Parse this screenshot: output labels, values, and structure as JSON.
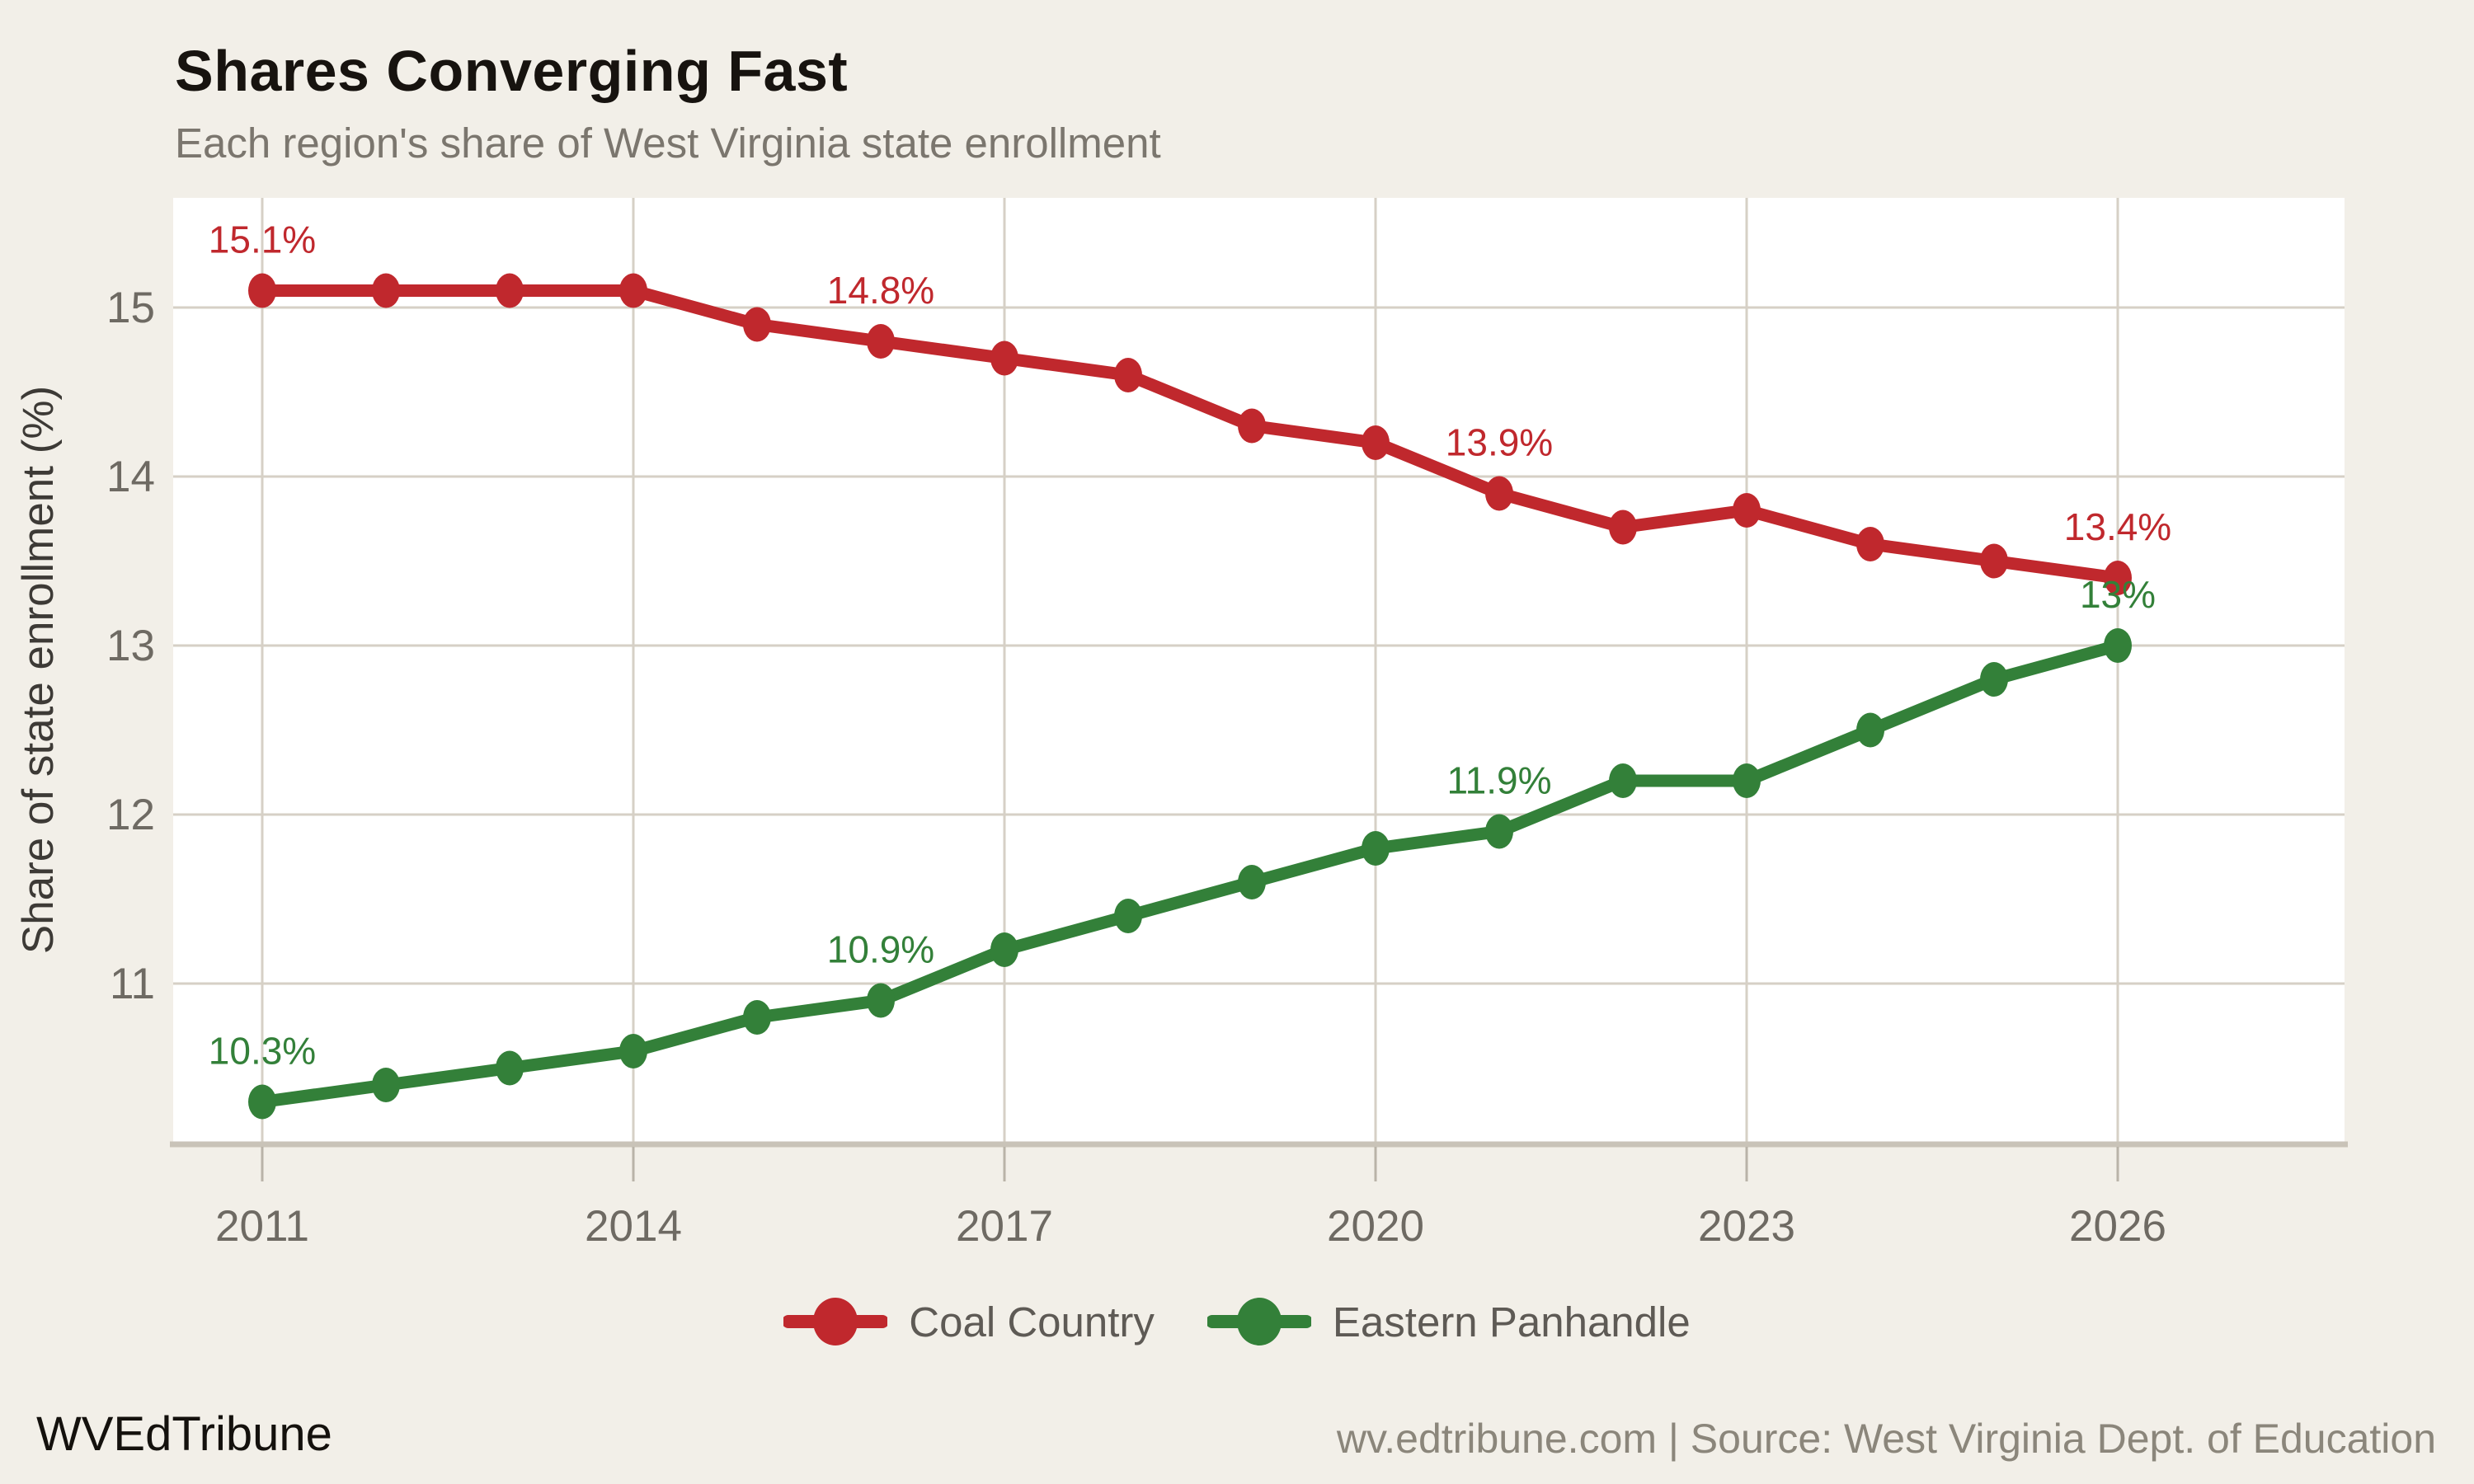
{
  "title": "Shares Converging Fast",
  "subtitle": "Each region's share of West Virginia state enrollment",
  "footer": {
    "brand": "WVEdTribune",
    "attribution": "wv.edtribune.com | Source: West Virginia Dept. of Education"
  },
  "colors": {
    "background": "#f2efe8",
    "plot_background": "#ffffff",
    "gridline": "#d6d0c6",
    "axis_line": "#c9c3b8",
    "tick_mark": "#b9b3a8",
    "tick_text": "#6e6a63",
    "axis_title_text": "#3d3a36",
    "legend_text": "#5e5a55",
    "coal_country_red": "#c0282d",
    "eastern_panhandle_green": "#338039"
  },
  "chart_data": {
    "type": "line",
    "title": "Shares Converging Fast",
    "subtitle": "Each region's share of West Virginia state enrollment",
    "xlabel": "",
    "ylabel": "Share of state enrollment (%)",
    "x": [
      2011,
      2012,
      2013,
      2014,
      2015,
      2016,
      2017,
      2018,
      2019,
      2020,
      2021,
      2022,
      2023,
      2024,
      2025,
      2026
    ],
    "xticks": [
      2011,
      2014,
      2017,
      2020,
      2023,
      2026
    ],
    "yticks": [
      11,
      12,
      13,
      14,
      15
    ],
    "ylim": [
      10.06,
      15.65
    ],
    "xlim": [
      2010.3,
      2027.8
    ],
    "grid": true,
    "legend_position": "bottom-center",
    "series": [
      {
        "name": "Coal Country",
        "color": "#c0282d",
        "values": [
          15.1,
          15.1,
          15.1,
          15.1,
          14.9,
          14.8,
          14.7,
          14.6,
          14.3,
          14.2,
          13.9,
          13.7,
          13.8,
          13.6,
          13.5,
          13.4
        ],
        "annotations": [
          {
            "x": 2011,
            "text": "15.1%"
          },
          {
            "x": 2016,
            "text": "14.8%"
          },
          {
            "x": 2021,
            "text": "13.9%"
          },
          {
            "x": 2026,
            "text": "13.4%"
          }
        ]
      },
      {
        "name": "Eastern Panhandle",
        "color": "#338039",
        "values": [
          10.3,
          10.4,
          10.5,
          10.6,
          10.8,
          10.9,
          11.2,
          11.4,
          11.6,
          11.8,
          11.9,
          12.2,
          12.2,
          12.5,
          12.8,
          13.0
        ],
        "annotations": [
          {
            "x": 2011,
            "text": "10.3%"
          },
          {
            "x": 2016,
            "text": "10.9%"
          },
          {
            "x": 2021,
            "text": "11.9%"
          },
          {
            "x": 2026,
            "text": "13%"
          }
        ]
      }
    ]
  }
}
